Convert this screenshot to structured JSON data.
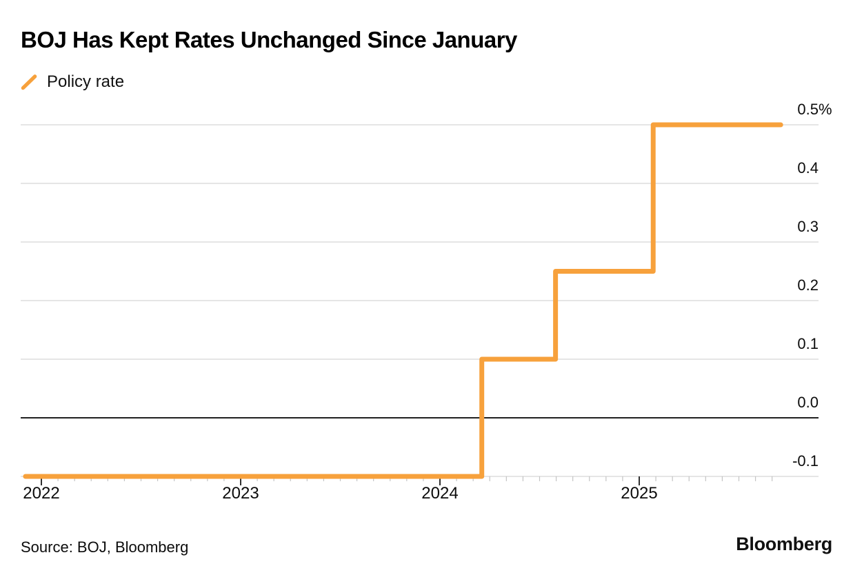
{
  "page": {
    "title": "BOJ Has Kept Rates Unchanged Since January",
    "source": "Source: BOJ, Bloomberg",
    "brand": "Bloomberg"
  },
  "legend": {
    "label": "Policy rate",
    "marker": "orange-slash"
  },
  "colors": {
    "line": "#F7A13C",
    "grid": "#CBCBCB",
    "zero_line": "#000000",
    "tick_minor": "#C4C4C4",
    "tick_year": "#1A1A1A",
    "text": "#000000"
  },
  "chart_data": {
    "type": "line",
    "style": "step",
    "title": "BOJ Has Kept Rates Unchanged Since January",
    "unit": "%",
    "grid": "horizontal",
    "legend_position": "top-left",
    "x_range": [
      2021.9,
      2025.95
    ],
    "y_range": [
      -0.13,
      0.55
    ],
    "series": [
      {
        "name": "Policy rate",
        "color": "#F7A13C",
        "points": [
          [
            2021.92,
            -0.1
          ],
          [
            2024.21,
            -0.1
          ],
          [
            2024.21,
            0.1
          ],
          [
            2024.58,
            0.1
          ],
          [
            2024.58,
            0.25
          ],
          [
            2025.07,
            0.25
          ],
          [
            2025.07,
            0.5
          ],
          [
            2025.71,
            0.5
          ]
        ]
      }
    ],
    "y_ticks": [
      {
        "value": 0.5,
        "label": "0.5",
        "suffix": "%"
      },
      {
        "value": 0.4,
        "label": "0.4",
        "suffix": ""
      },
      {
        "value": 0.3,
        "label": "0.3",
        "suffix": ""
      },
      {
        "value": 0.2,
        "label": "0.2",
        "suffix": ""
      },
      {
        "value": 0.1,
        "label": "0.1",
        "suffix": ""
      },
      {
        "value": 0.0,
        "label": "0.0",
        "suffix": ""
      },
      {
        "value": -0.1,
        "label": "-0.1",
        "suffix": ""
      }
    ],
    "x_ticks": [
      {
        "value": 2022,
        "label": "2022"
      },
      {
        "value": 2023,
        "label": "2023"
      },
      {
        "value": 2024,
        "label": "2024"
      },
      {
        "value": 2025,
        "label": "2025"
      }
    ],
    "x_minor_ticks_monthly": {
      "start": 2022.0,
      "end": 2025.6667
    }
  }
}
